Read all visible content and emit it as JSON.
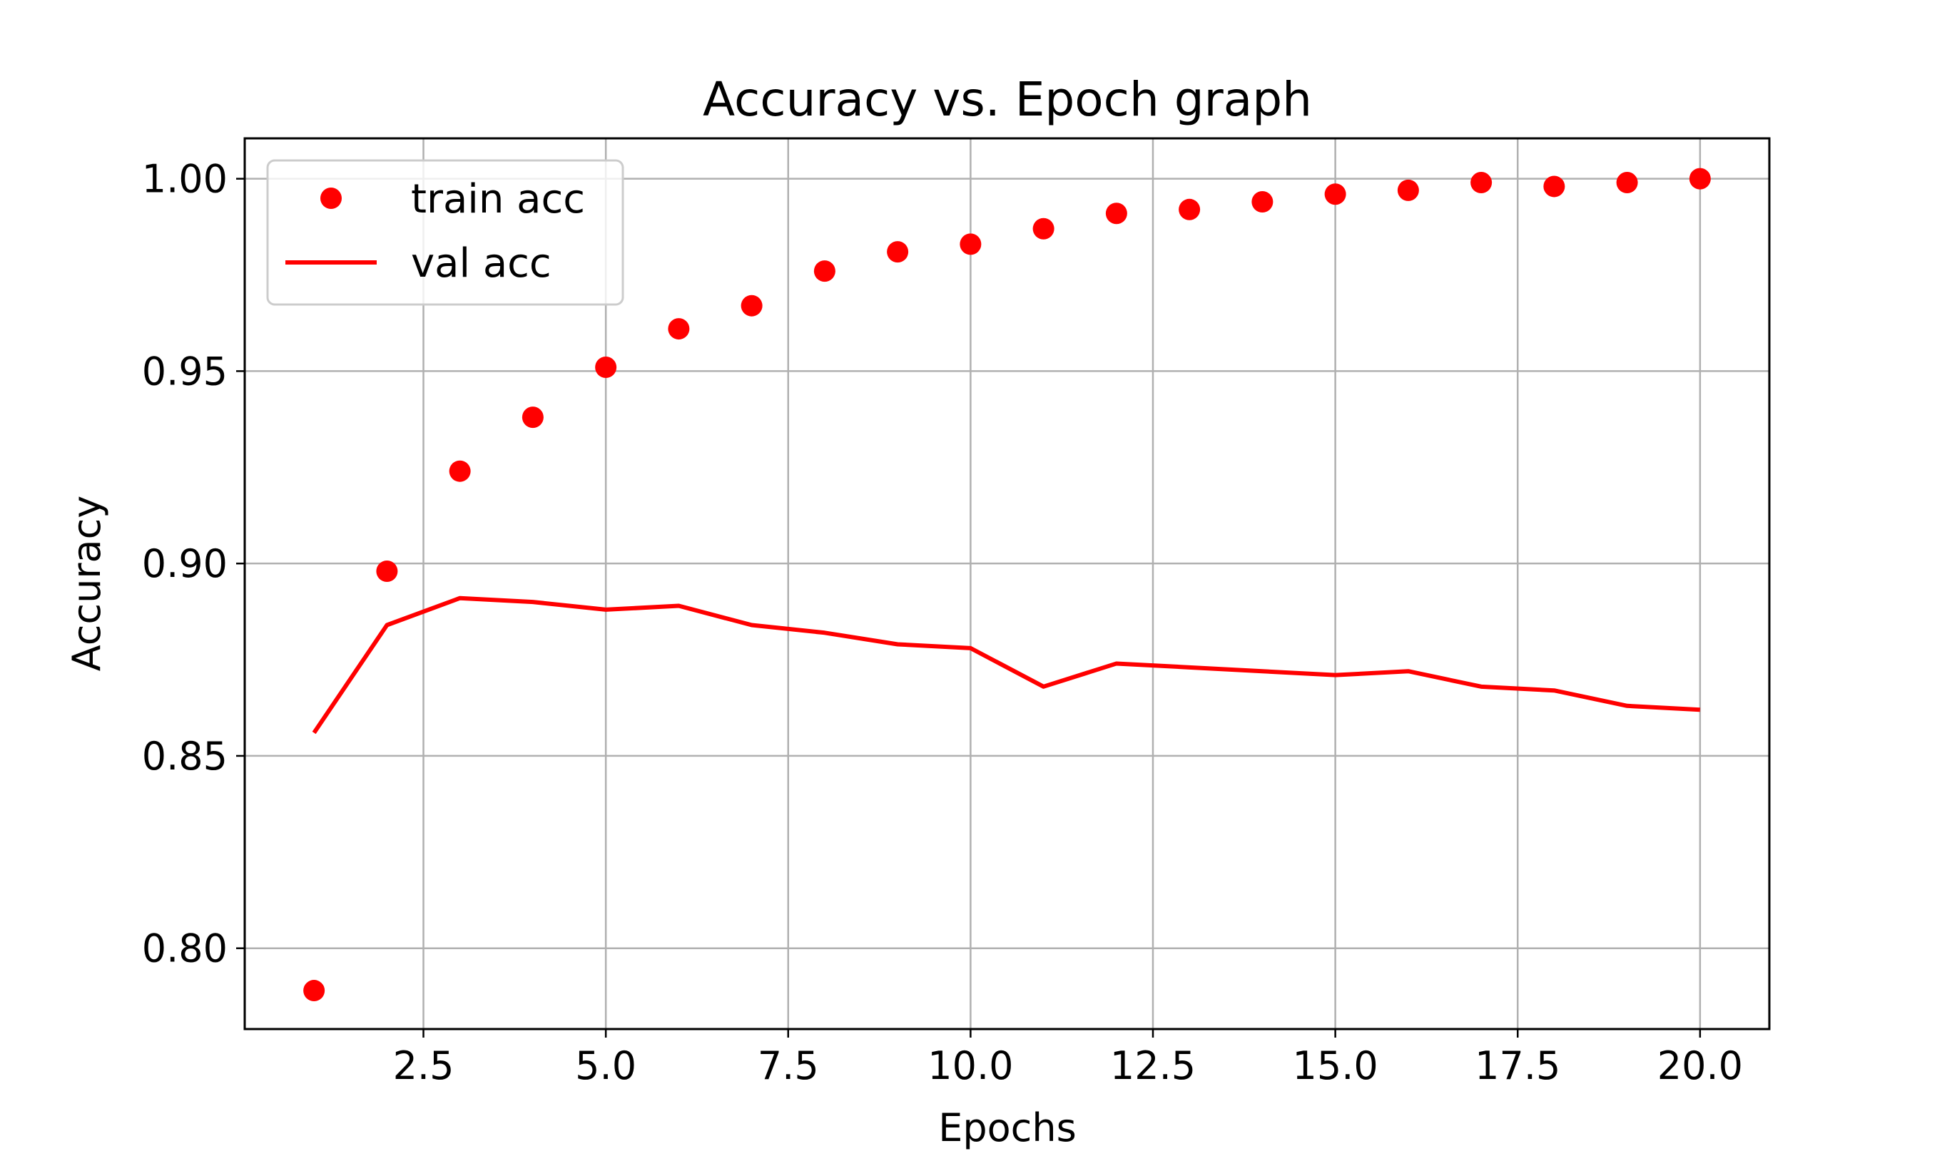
{
  "chart_data": {
    "type": "scatter",
    "title": "Accuracy vs. Epoch graph",
    "xlabel": "Epochs",
    "ylabel": "Accuracy",
    "xlim": [
      0.05,
      20.95
    ],
    "ylim": [
      0.779,
      1.0105
    ],
    "xticks": [
      2.5,
      5.0,
      7.5,
      10.0,
      12.5,
      15.0,
      17.5,
      20.0
    ],
    "xtick_labels": [
      "2.5",
      "5.0",
      "7.5",
      "10.0",
      "12.5",
      "15.0",
      "17.5",
      "20.0"
    ],
    "yticks": [
      0.8,
      0.85,
      0.9,
      0.95,
      1.0
    ],
    "ytick_labels": [
      "0.80",
      "0.85",
      "0.90",
      "0.95",
      "1.00"
    ],
    "grid": true,
    "legend_position": "top-left",
    "x": [
      1,
      2,
      3,
      4,
      5,
      6,
      7,
      8,
      9,
      10,
      11,
      12,
      13,
      14,
      15,
      16,
      17,
      18,
      19,
      20
    ],
    "series": [
      {
        "name": "train acc",
        "style": "markers",
        "color": "#ff0000",
        "values": [
          0.789,
          0.898,
          0.924,
          0.938,
          0.951,
          0.961,
          0.967,
          0.976,
          0.981,
          0.983,
          0.987,
          0.991,
          0.992,
          0.994,
          0.996,
          0.997,
          0.999,
          0.998,
          0.999,
          1.0
        ]
      },
      {
        "name": "val acc",
        "style": "line",
        "color": "#ff0000",
        "values": [
          0.856,
          0.884,
          0.891,
          0.89,
          0.888,
          0.889,
          0.884,
          0.882,
          0.879,
          0.878,
          0.868,
          0.874,
          0.873,
          0.872,
          0.871,
          0.872,
          0.868,
          0.867,
          0.863,
          0.862
        ]
      }
    ]
  }
}
